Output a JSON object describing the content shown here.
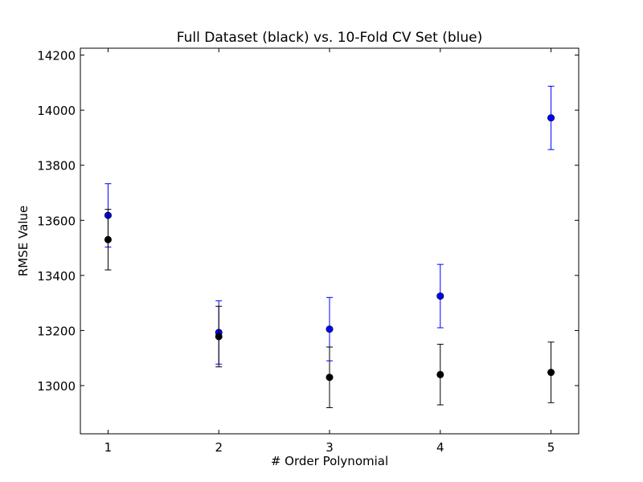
{
  "chart_data": {
    "type": "scatter",
    "title": "Full Dataset (black) vs. 10-Fold CV Set (blue)",
    "xlabel": "# Order Polynomial",
    "ylabel": "RMSE Value",
    "xlim": [
      0.75,
      5.25
    ],
    "ylim": [
      12825,
      14225
    ],
    "x_ticks": [
      1,
      2,
      3,
      4,
      5
    ],
    "y_ticks": [
      13000,
      13200,
      13400,
      13600,
      13800,
      14000,
      14200
    ],
    "grid": false,
    "series": [
      {
        "color": "#0000ff",
        "x": [
          1,
          2,
          3,
          4,
          5
        ],
        "y": [
          13618,
          13193,
          13205,
          13325,
          13972
        ],
        "error": [
          115,
          115,
          115,
          115,
          115
        ]
      },
      {
        "color": "#000000",
        "x": [
          1,
          2,
          3,
          4,
          5
        ],
        "y": [
          13530,
          13178,
          13030,
          13040,
          13048
        ],
        "error": [
          110,
          110,
          110,
          110,
          110
        ]
      }
    ]
  }
}
